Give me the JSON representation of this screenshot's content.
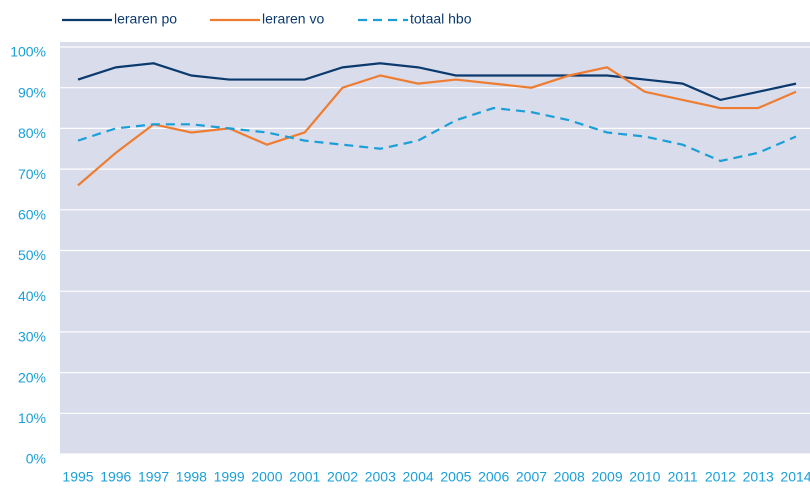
{
  "chart_data": {
    "type": "line",
    "categories": [
      "1995",
      "1996",
      "1997",
      "1998",
      "1999",
      "2000",
      "2001",
      "2002",
      "2003",
      "2004",
      "2005",
      "2006",
      "2007",
      "2008",
      "2009",
      "2010",
      "2011",
      "2012",
      "2013",
      "2014"
    ],
    "series": [
      {
        "name": "leraren po",
        "color": "#0b3a6e",
        "dash": false,
        "values": [
          92,
          95,
          96,
          93,
          92,
          92,
          92,
          95,
          96,
          95,
          93,
          93,
          93,
          93,
          93,
          92,
          91,
          87,
          89,
          91
        ]
      },
      {
        "name": "leraren vo",
        "color": "#ee7d31",
        "dash": false,
        "values": [
          66,
          74,
          81,
          79,
          80,
          76,
          79,
          90,
          93,
          91,
          92,
          91,
          90,
          93,
          95,
          89,
          87,
          85,
          85,
          89
        ]
      },
      {
        "name": "totaal hbo",
        "color": "#1a9fd8",
        "dash": true,
        "values": [
          77,
          80,
          81,
          81,
          80,
          79,
          77,
          76,
          75,
          77,
          82,
          85,
          84,
          82,
          79,
          78,
          76,
          72,
          74,
          78
        ]
      }
    ],
    "ylim": [
      0,
      100
    ],
    "yticks": [
      {
        "value": 0,
        "label": "0%"
      },
      {
        "value": 10,
        "label": "10%"
      },
      {
        "value": 20,
        "label": "20%"
      },
      {
        "value": 30,
        "label": "30%"
      },
      {
        "value": 40,
        "label": "40%"
      },
      {
        "value": 50,
        "label": "50%"
      },
      {
        "value": 60,
        "label": "60%"
      },
      {
        "value": 70,
        "label": "70%"
      },
      {
        "value": 80,
        "label": "80%"
      },
      {
        "value": 90,
        "label": "90%"
      },
      {
        "value": 100,
        "label": "100%"
      }
    ],
    "grid": true
  }
}
